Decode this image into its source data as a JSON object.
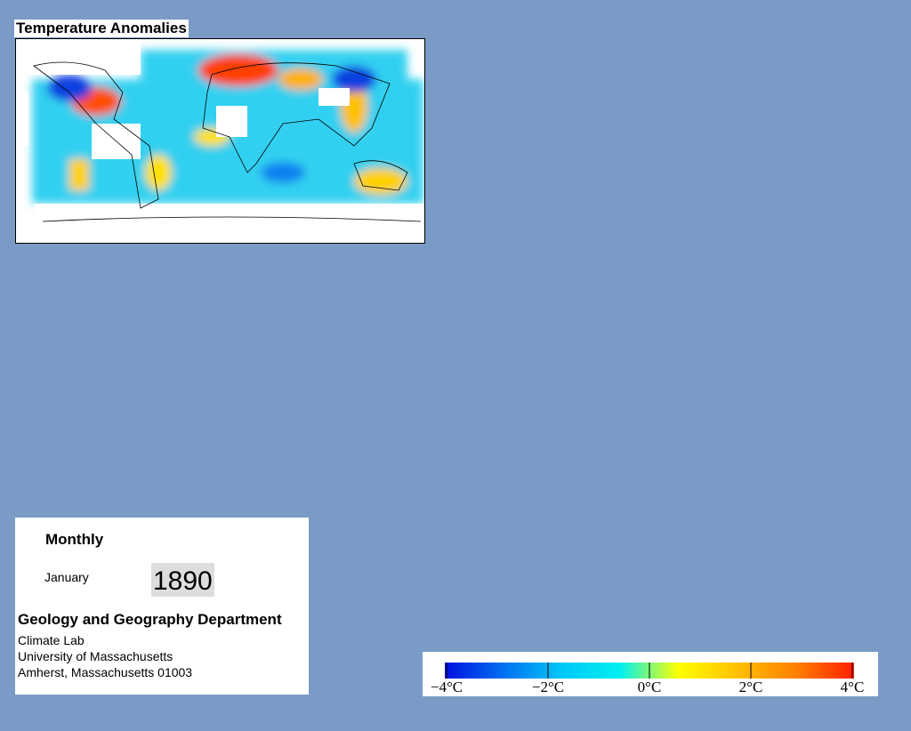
{
  "title": "Temperature Anomalies",
  "panel": {
    "mode": "Monthly",
    "month": "January",
    "year": "1890",
    "department": "Geology and Geography Department",
    "lines": [
      "Climate Lab",
      "University of Massachusetts",
      "Amherst, Massachusetts 01003"
    ]
  },
  "colorbar": {
    "lim": [
      -4,
      4
    ],
    "ticks": [
      {
        "value": -4,
        "label": "−4°C"
      },
      {
        "value": -2,
        "label": "−2°C"
      },
      {
        "value": 0,
        "label": "0°C"
      },
      {
        "value": 2,
        "label": "2°C"
      },
      {
        "value": 4,
        "label": "4°C"
      }
    ],
    "colors": [
      "#0010e0",
      "#0070f0",
      "#00c8f8",
      "#00f0f0",
      "#ffff00",
      "#ffc000",
      "#ff8000",
      "#ff2000"
    ]
  }
}
